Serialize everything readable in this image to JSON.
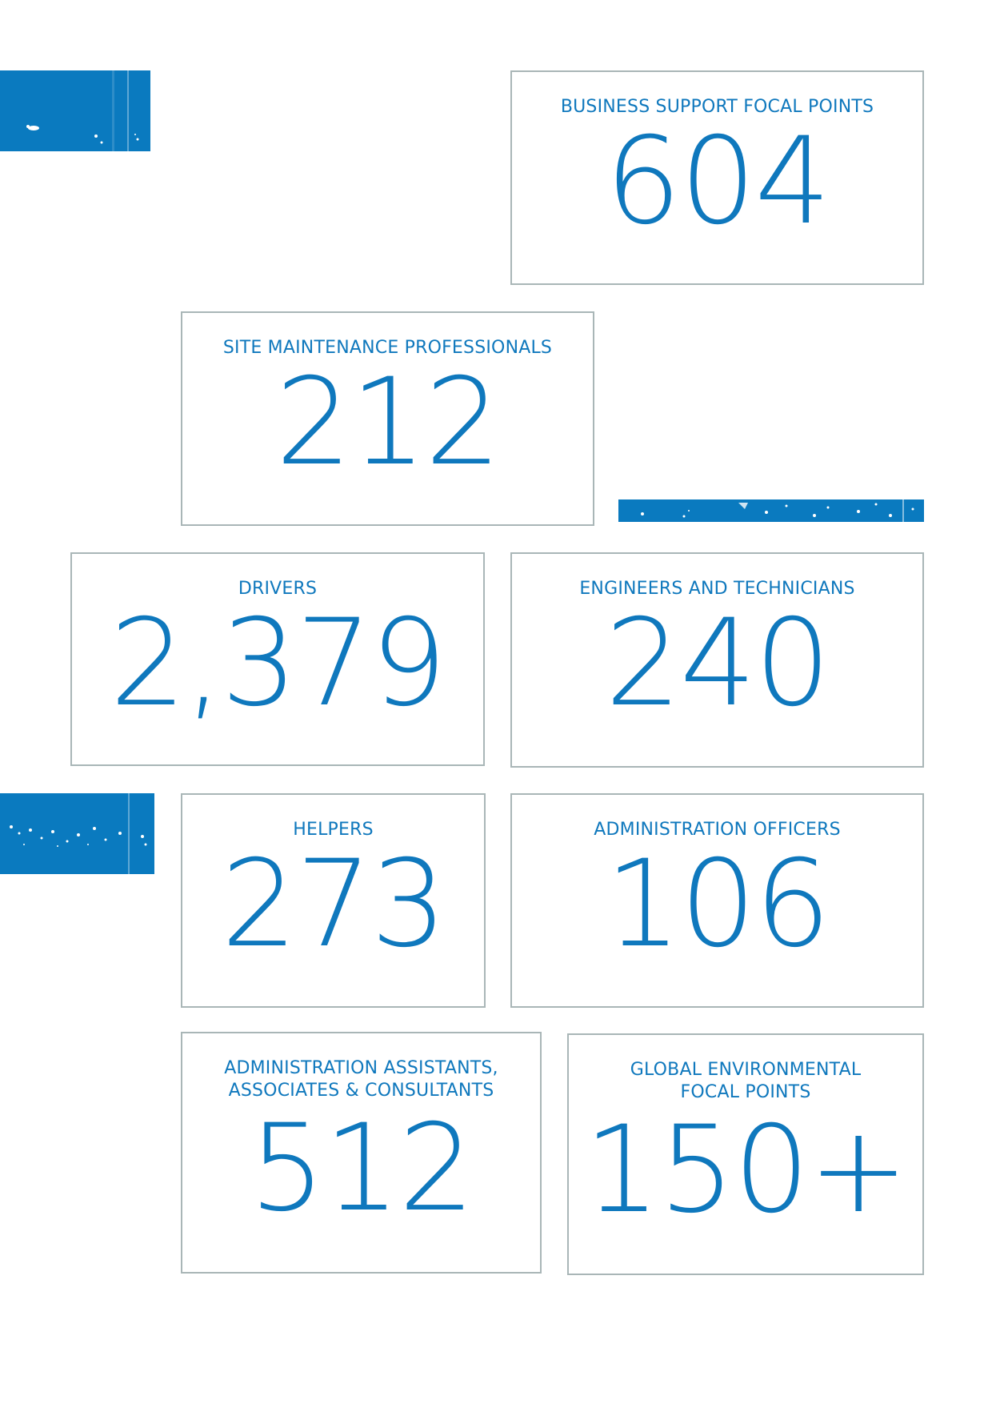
{
  "cards": [
    {
      "id": "business-support",
      "label": "BUSINESS SUPPORT FOCAL POINTS",
      "value": "604"
    },
    {
      "id": "site-maintenance",
      "label": "SITE MAINTENANCE PROFESSIONALS",
      "value": "212"
    },
    {
      "id": "drivers",
      "label": "DRIVERS",
      "value": "2,379"
    },
    {
      "id": "engineers",
      "label": "ENGINEERS AND TECHNICIANS",
      "value": "240"
    },
    {
      "id": "helpers",
      "label": "HELPERS",
      "value": "273"
    },
    {
      "id": "admin-officers",
      "label": "ADMINISTRATION OFFICERS",
      "value": "106"
    },
    {
      "id": "admin-assistants",
      "label": "ADMINISTRATION ASSISTANTS,\nASSOCIATES & CONSULTANTS",
      "value": "512"
    },
    {
      "id": "environmental",
      "label": "GLOBAL ENVIRONMENTAL\nFOCAL POINTS",
      "value": "150+"
    }
  ],
  "colors": {
    "accent": "#0f78bd",
    "bar": "#0a7abf",
    "border": "#a9b6b7"
  }
}
